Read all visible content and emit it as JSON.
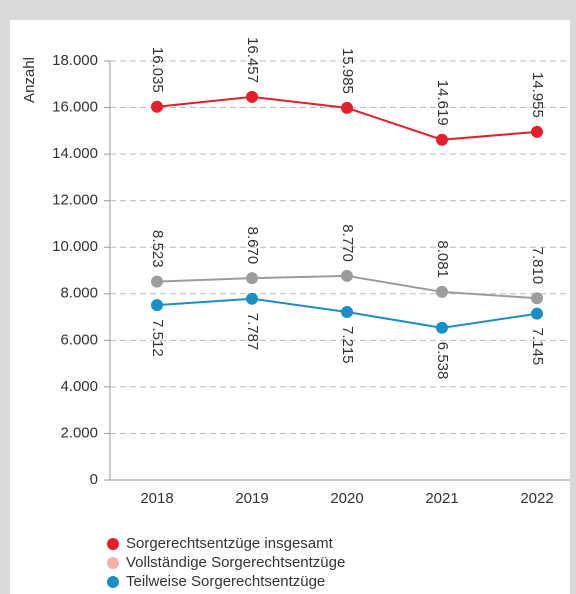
{
  "chart_data": {
    "type": "line",
    "y_label": "Anzahl",
    "categories": [
      "2018",
      "2019",
      "2020",
      "2021",
      "2022"
    ],
    "series": [
      {
        "name": "Sorgerechtsentzüge insgesamt",
        "color": "#e3202a",
        "legend_color": "#e3202a",
        "label_side": "above",
        "values": [
          16035,
          16457,
          15985,
          14619,
          14955
        ],
        "value_labels": [
          "16.035",
          "16.457",
          "15.985",
          "14.619",
          "14.955"
        ]
      },
      {
        "name": "Vollständige Sorgerechtsentzüge",
        "color": "#9b9d9c",
        "legend_color": "#f2b1a8",
        "label_side": "above",
        "values": [
          8523,
          8670,
          8770,
          8081,
          7810
        ],
        "value_labels": [
          "8.523",
          "8.670",
          "8.770",
          "8.081",
          "7.810"
        ]
      },
      {
        "name": "Teilweise Sorgerechtsentzüge",
        "color": "#1a8fc3",
        "legend_color": "#1a8fc3",
        "label_side": "below",
        "values": [
          7512,
          7787,
          7215,
          6538,
          7145
        ],
        "value_labels": [
          "7.512",
          "7.787",
          "7.215",
          "6.538",
          "7.145"
        ]
      }
    ],
    "ylim": [
      0,
      18000
    ],
    "yticks": [
      0,
      {
        "value": 2000,
        "label": "2.000"
      },
      {
        "value": 4000,
        "label": "4.000"
      },
      {
        "value": 6000,
        "label": "6.000"
      },
      {
        "value": 8000,
        "label": "8.000"
      },
      {
        "value": 10000,
        "label": "10.000"
      },
      {
        "value": 12000,
        "label": "12.000"
      },
      {
        "value": 14000,
        "label": "14.000"
      },
      {
        "value": 16000,
        "label": "16.000"
      },
      {
        "value": 18000,
        "label": "18.000"
      }
    ],
    "grid": true
  }
}
